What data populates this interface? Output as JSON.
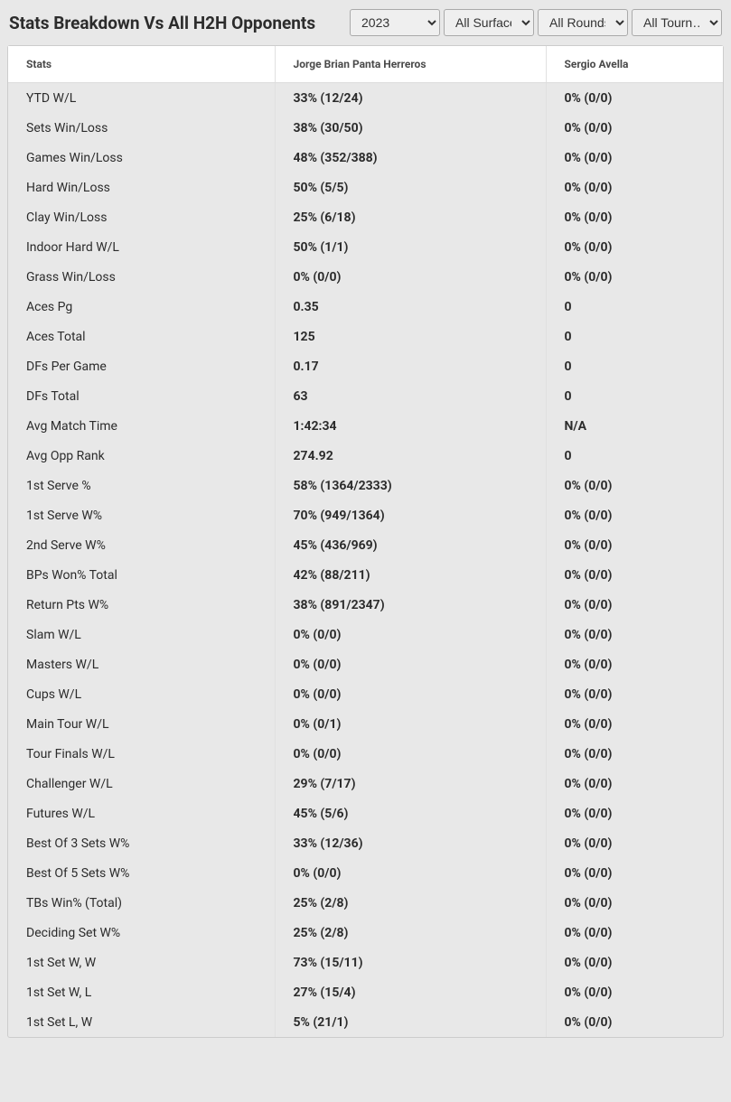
{
  "header": {
    "title": "Stats Breakdown Vs All H2H Opponents",
    "filters": {
      "year": {
        "selected": "2023"
      },
      "surface": {
        "selected": "All Surfaces"
      },
      "round": {
        "selected": "All Rounds"
      },
      "tournament": {
        "selected": "All Tourn…"
      }
    }
  },
  "table": {
    "columns": {
      "stats": "Stats",
      "player1": "Jorge Brian Panta Herreros",
      "player2": "Sergio Avella"
    },
    "rows": [
      {
        "stat": "YTD W/L",
        "p1": "33% (12/24)",
        "p2": "0% (0/0)"
      },
      {
        "stat": "Sets Win/Loss",
        "p1": "38% (30/50)",
        "p2": "0% (0/0)"
      },
      {
        "stat": "Games Win/Loss",
        "p1": "48% (352/388)",
        "p2": "0% (0/0)"
      },
      {
        "stat": "Hard Win/Loss",
        "p1": "50% (5/5)",
        "p2": "0% (0/0)"
      },
      {
        "stat": "Clay Win/Loss",
        "p1": "25% (6/18)",
        "p2": "0% (0/0)"
      },
      {
        "stat": "Indoor Hard W/L",
        "p1": "50% (1/1)",
        "p2": "0% (0/0)"
      },
      {
        "stat": "Grass Win/Loss",
        "p1": "0% (0/0)",
        "p2": "0% (0/0)"
      },
      {
        "stat": "Aces Pg",
        "p1": "0.35",
        "p2": "0"
      },
      {
        "stat": "Aces Total",
        "p1": "125",
        "p2": "0"
      },
      {
        "stat": "DFs Per Game",
        "p1": "0.17",
        "p2": "0"
      },
      {
        "stat": "DFs Total",
        "p1": "63",
        "p2": "0"
      },
      {
        "stat": "Avg Match Time",
        "p1": "1:42:34",
        "p2": "N/A"
      },
      {
        "stat": "Avg Opp Rank",
        "p1": "274.92",
        "p2": "0"
      },
      {
        "stat": "1st Serve %",
        "p1": "58% (1364/2333)",
        "p2": "0% (0/0)"
      },
      {
        "stat": "1st Serve W%",
        "p1": "70% (949/1364)",
        "p2": "0% (0/0)"
      },
      {
        "stat": "2nd Serve W%",
        "p1": "45% (436/969)",
        "p2": "0% (0/0)"
      },
      {
        "stat": "BPs Won% Total",
        "p1": "42% (88/211)",
        "p2": "0% (0/0)"
      },
      {
        "stat": "Return Pts W%",
        "p1": "38% (891/2347)",
        "p2": "0% (0/0)"
      },
      {
        "stat": "Slam W/L",
        "p1": "0% (0/0)",
        "p2": "0% (0/0)"
      },
      {
        "stat": "Masters W/L",
        "p1": "0% (0/0)",
        "p2": "0% (0/0)"
      },
      {
        "stat": "Cups W/L",
        "p1": "0% (0/0)",
        "p2": "0% (0/0)"
      },
      {
        "stat": "Main Tour W/L",
        "p1": "0% (0/1)",
        "p2": "0% (0/0)"
      },
      {
        "stat": "Tour Finals W/L",
        "p1": "0% (0/0)",
        "p2": "0% (0/0)"
      },
      {
        "stat": "Challenger W/L",
        "p1": "29% (7/17)",
        "p2": "0% (0/0)"
      },
      {
        "stat": "Futures W/L",
        "p1": "45% (5/6)",
        "p2": "0% (0/0)"
      },
      {
        "stat": "Best Of 3 Sets W%",
        "p1": "33% (12/36)",
        "p2": "0% (0/0)"
      },
      {
        "stat": "Best Of 5 Sets W%",
        "p1": "0% (0/0)",
        "p2": "0% (0/0)"
      },
      {
        "stat": "TBs Win% (Total)",
        "p1": "25% (2/8)",
        "p2": "0% (0/0)"
      },
      {
        "stat": "Deciding Set W%",
        "p1": "25% (2/8)",
        "p2": "0% (0/0)"
      },
      {
        "stat": "1st Set W, W",
        "p1": "73% (15/11)",
        "p2": "0% (0/0)"
      },
      {
        "stat": "1st Set W, L",
        "p1": "27% (15/4)",
        "p2": "0% (0/0)"
      },
      {
        "stat": "1st Set L, W",
        "p1": "5% (21/1)",
        "p2": "0% (0/0)"
      }
    ]
  },
  "styling": {
    "background_color": "#e8e8e8",
    "table_background": "#ffffff",
    "border_color": "#e0e0e0",
    "header_text_color": "#4a4a4a",
    "body_text_color": "#2c2c2c",
    "title_fontsize": 19,
    "header_fontsize": 12,
    "cell_fontsize": 14
  }
}
